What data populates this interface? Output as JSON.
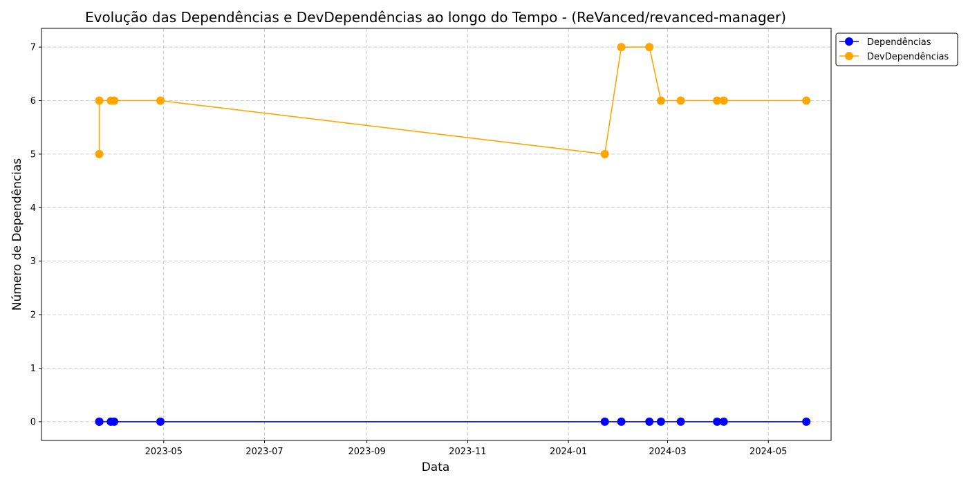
{
  "chart_data": {
    "type": "line",
    "title": "Evolução das Dependências e DevDependências ao longo do Tempo - (ReVanced/revanced-manager)",
    "xlabel": "Data",
    "ylabel": "Número de Dependências",
    "x_axis_type": "date",
    "xlim": [
      "2023-02-16",
      "2024-06-08"
    ],
    "ylim": [
      -0.35,
      7.35
    ],
    "x_ticks": [
      {
        "date": "2023-05-01",
        "label": "2023-05"
      },
      {
        "date": "2023-07-01",
        "label": "2023-07"
      },
      {
        "date": "2023-09-01",
        "label": "2023-09"
      },
      {
        "date": "2023-11-01",
        "label": "2023-11"
      },
      {
        "date": "2024-01-01",
        "label": "2024-01"
      },
      {
        "date": "2024-03-01",
        "label": "2024-03"
      },
      {
        "date": "2024-05-01",
        "label": "2024-05"
      }
    ],
    "y_ticks": [
      0,
      1,
      2,
      3,
      4,
      5,
      6,
      7
    ],
    "grid": true,
    "legend_position": "outside top-right",
    "x": [
      "2023-03-23",
      "2023-03-23",
      "2023-03-30",
      "2023-04-01",
      "2023-04-29",
      "2024-01-23",
      "2024-02-02",
      "2024-02-19",
      "2024-02-26",
      "2024-03-09",
      "2024-03-31",
      "2024-04-04",
      "2024-05-24"
    ],
    "series": [
      {
        "name": "Dependências",
        "color": "#0000ff",
        "values": [
          0,
          0,
          0,
          0,
          0,
          0,
          0,
          0,
          0,
          0,
          0,
          0,
          0
        ]
      },
      {
        "name": "DevDependências",
        "color": "#ffa500",
        "values": [
          5,
          6,
          6,
          6,
          6,
          5,
          7,
          7,
          6,
          6,
          6,
          6,
          6
        ]
      }
    ]
  }
}
